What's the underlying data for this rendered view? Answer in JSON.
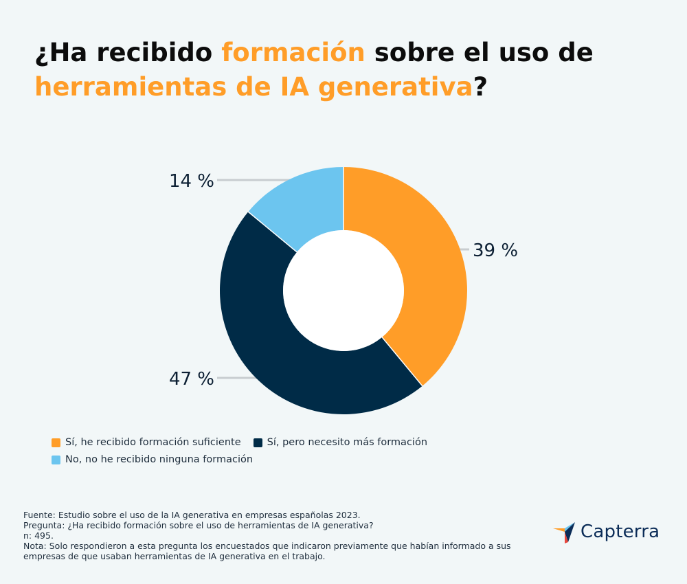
{
  "title": {
    "part1": "¿Ha recibido ",
    "part2": "formación",
    "part3": " sobre el uso de ",
    "part4": "herramientas de IA generativa",
    "part5": "?"
  },
  "chart_data": {
    "type": "pie",
    "categories": [
      "Sí, he recibido formación suficiente",
      "Sí, pero necesito más formación",
      "No, no he recibido ninguna formación"
    ],
    "values": [
      39,
      47,
      14
    ],
    "value_labels": [
      "39 %",
      "47 %",
      "14 %"
    ],
    "colors": [
      "#ff9d28",
      "#002b47",
      "#6cc5ef"
    ],
    "legend_position": "bottom-left",
    "donut": true
  },
  "footnotes": {
    "source": "Fuente: Estudio sobre el uso de la IA generativa en empresas españolas 2023.",
    "question": "Pregunta: ¿Ha recibido formación sobre el uso de herramientas de IA generativa?",
    "n": "n: 495.",
    "note": "Nota: Solo respondieron a esta pregunta los encuestados que indicaron previamente que habían informado a sus empresas de que usaban herramientas de IA generativa en el trabajo."
  },
  "logo": {
    "text": "Capterra",
    "colors": [
      "#ff9d28",
      "#6cc5ef",
      "#0b2c57",
      "#e8463c"
    ]
  }
}
